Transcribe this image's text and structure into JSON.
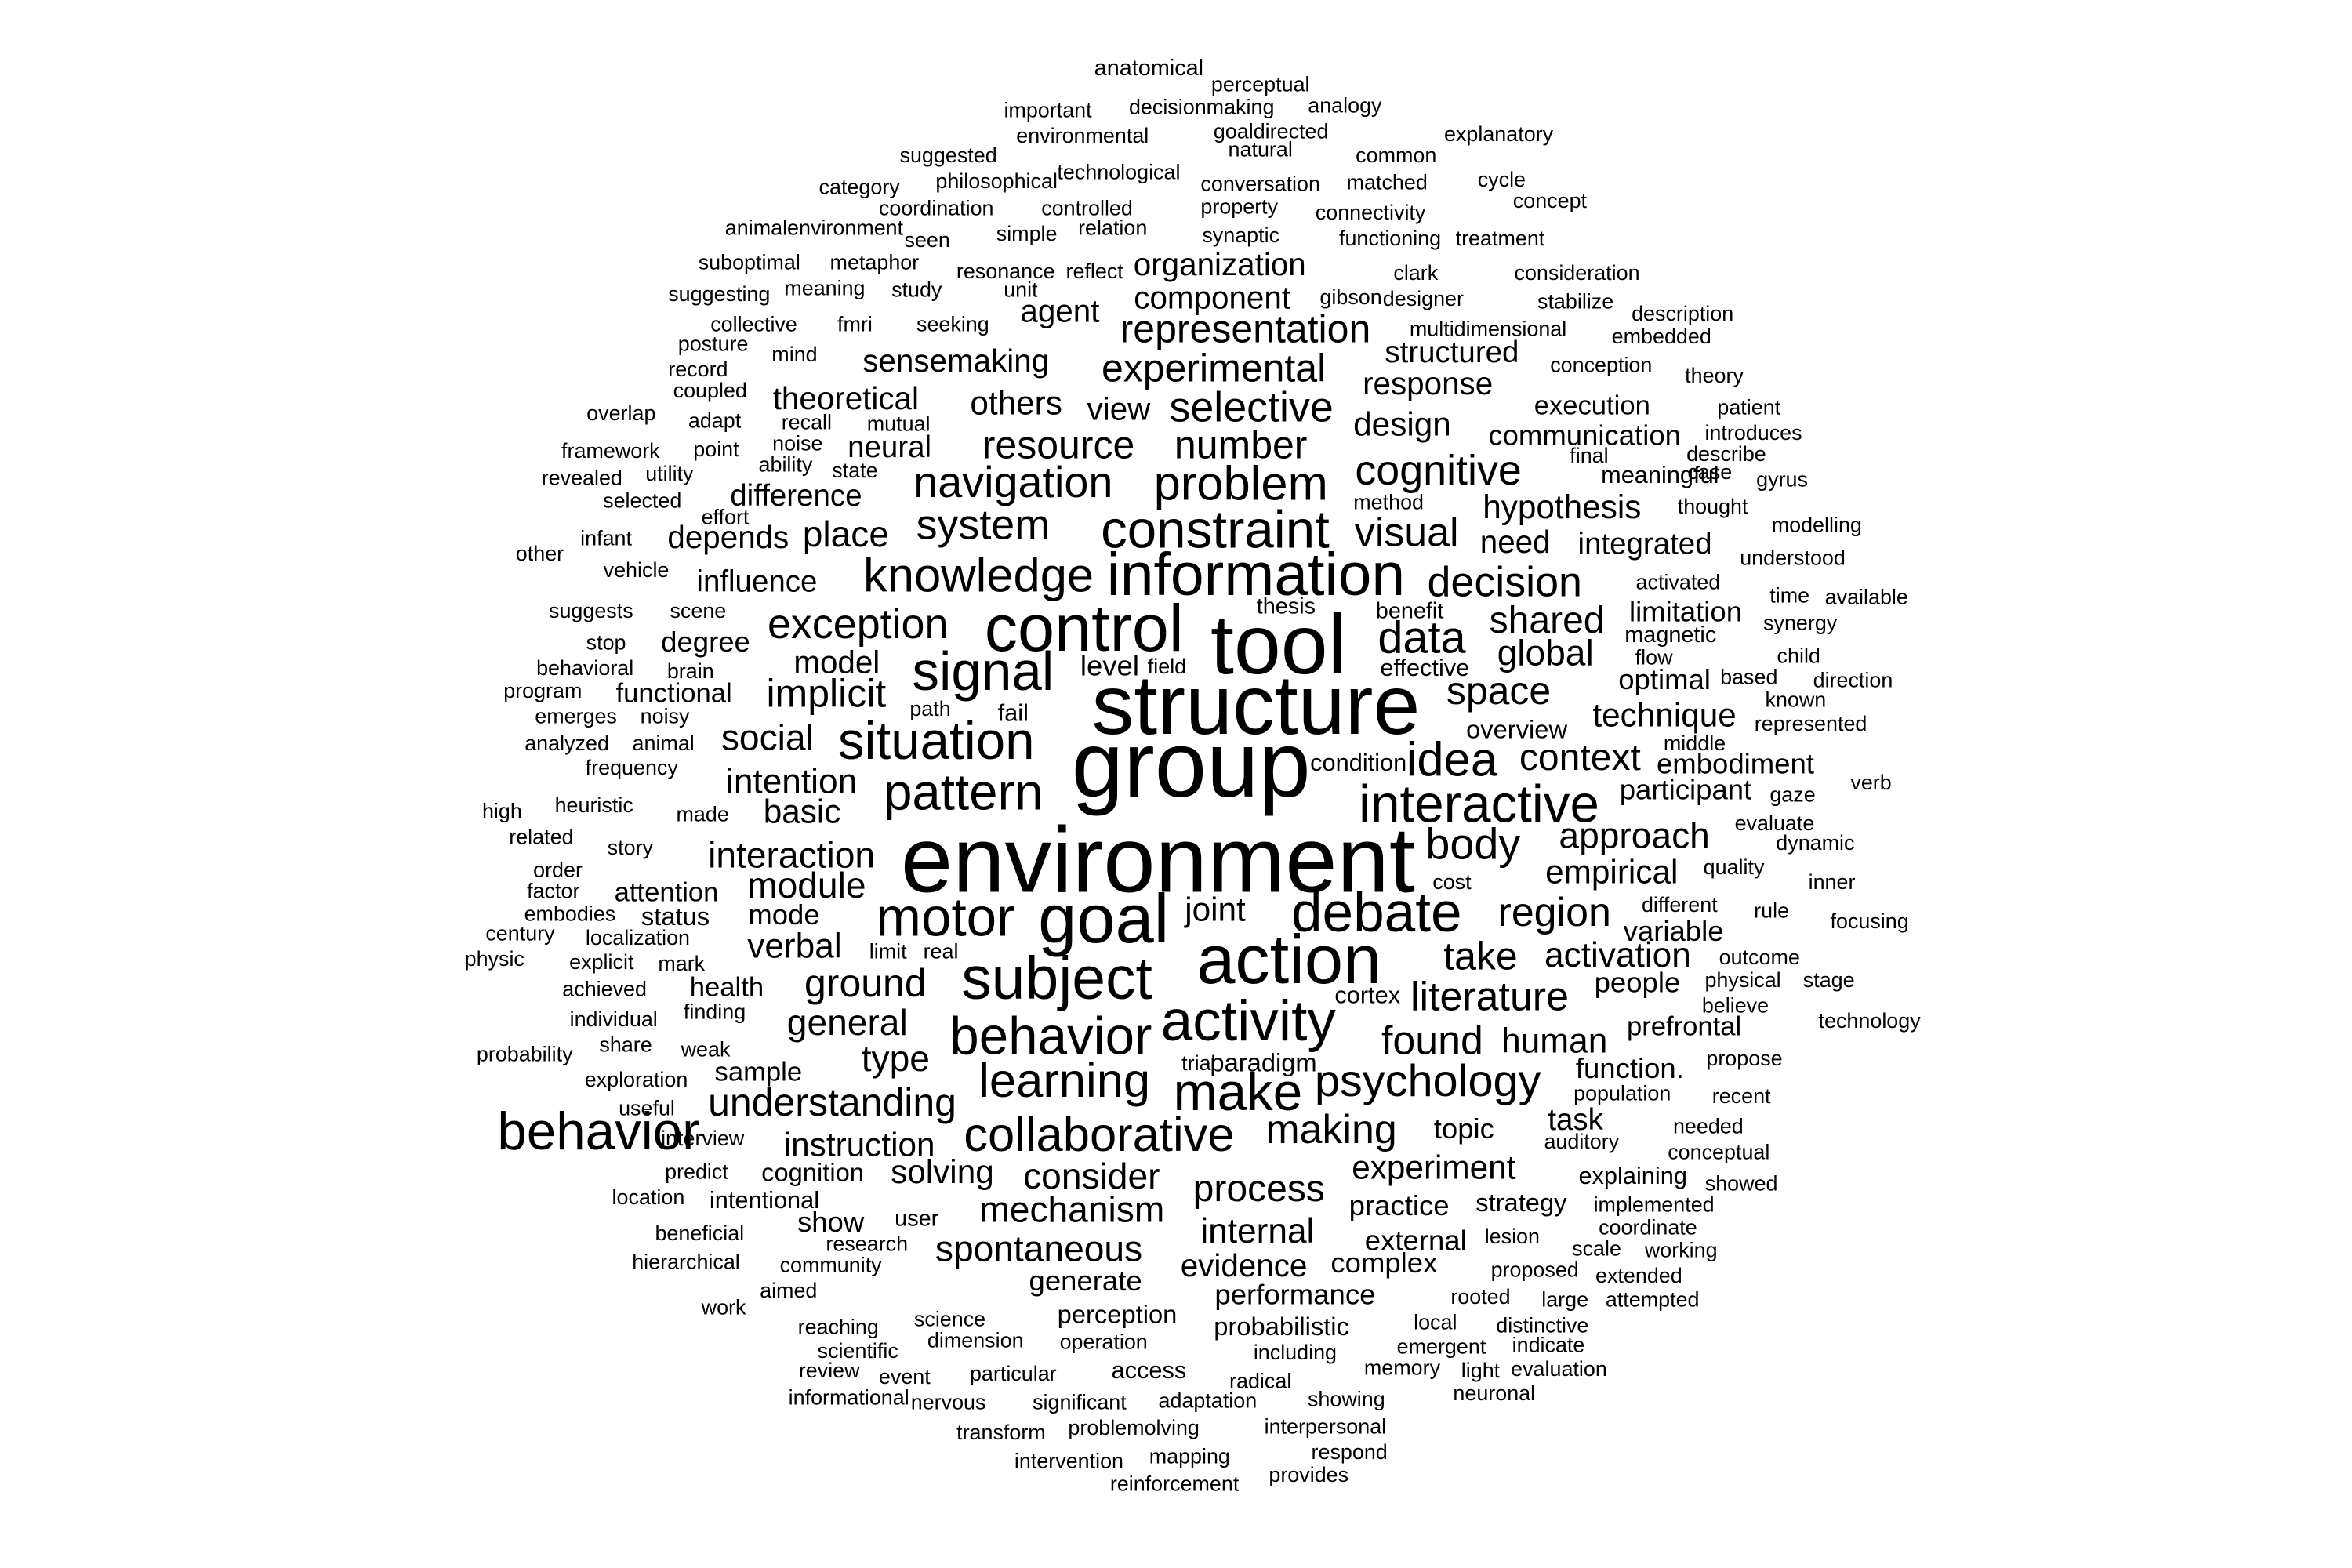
{
  "cloud": {
    "color": "#000000",
    "background": "#ffffff",
    "word_weights": [
      [
        "group",
        62
      ],
      [
        "environment",
        62
      ],
      [
        "structure",
        56
      ],
      [
        "tool",
        56
      ],
      [
        "action",
        46
      ],
      [
        "goal",
        46
      ],
      [
        "control",
        44
      ],
      [
        "information",
        40
      ],
      [
        "subject",
        40
      ],
      [
        "activity",
        38
      ],
      [
        "debate",
        37
      ],
      [
        "motor",
        36
      ],
      [
        "signal",
        36
      ],
      [
        "constraint",
        35
      ],
      [
        "situation",
        35
      ],
      [
        "behavior",
        35
      ],
      [
        "make",
        35
      ],
      [
        "interactive",
        35
      ],
      [
        "knowledge",
        32
      ],
      [
        "problem",
        32
      ],
      [
        "pattern",
        34
      ],
      [
        "idea",
        32
      ],
      [
        "data",
        30
      ],
      [
        "learning",
        32
      ],
      [
        "psychology",
        30
      ],
      [
        "collaborative",
        32
      ],
      [
        "navigation",
        29
      ],
      [
        "body",
        29
      ],
      [
        "system",
        28
      ],
      [
        "exception",
        28
      ],
      [
        "selective",
        28
      ],
      [
        "decision",
        28
      ],
      [
        "cognitive",
        28
      ],
      [
        "literature",
        27
      ],
      [
        "making",
        27
      ],
      [
        "visual",
        27
      ],
      [
        "found",
        27
      ],
      [
        "number",
        26
      ],
      [
        "resource",
        26
      ],
      [
        "space",
        26
      ],
      [
        "region",
        27
      ],
      [
        "take",
        26
      ],
      [
        "experimental",
        26
      ],
      [
        "representation",
        26
      ],
      [
        "understanding",
        26
      ],
      [
        "implicit",
        26
      ],
      [
        "ground",
        26
      ],
      [
        "process",
        25
      ],
      [
        "context",
        25
      ],
      [
        "shared",
        25
      ],
      [
        "mechanism",
        24
      ],
      [
        "spontaneous",
        24
      ],
      [
        "consider",
        24
      ],
      [
        "interaction",
        24
      ],
      [
        "module",
        24
      ],
      [
        "global",
        24
      ],
      [
        "general",
        24
      ],
      [
        "approach",
        24
      ],
      [
        "type",
        24
      ],
      [
        "place",
        24
      ],
      [
        "social",
        24
      ],
      [
        "intention",
        23
      ],
      [
        "activation",
        23
      ],
      [
        "verbal",
        23
      ],
      [
        "internal",
        23
      ],
      [
        "technique",
        22
      ],
      [
        "hypothesis",
        22
      ],
      [
        "human",
        23
      ],
      [
        "joint",
        22
      ],
      [
        "solving",
        22
      ],
      [
        "instruction",
        22
      ],
      [
        "experiment",
        22
      ],
      [
        "evidence",
        21
      ],
      [
        "empirical",
        22
      ],
      [
        "response",
        21
      ],
      [
        "design",
        22
      ],
      [
        "basic",
        22
      ],
      [
        "model",
        21
      ],
      [
        "view",
        21
      ],
      [
        "others",
        22
      ],
      [
        "theoretical",
        21
      ],
      [
        "sensemaking",
        21
      ],
      [
        "organization",
        21
      ],
      [
        "agent",
        21
      ],
      [
        "component",
        21
      ],
      [
        "depends",
        21
      ],
      [
        "difference",
        20
      ],
      [
        "influence",
        20
      ],
      [
        "communication",
        19
      ],
      [
        "structured",
        20
      ],
      [
        "need",
        21
      ],
      [
        "integrated",
        20
      ],
      [
        "limitation",
        19
      ],
      [
        "embodiment",
        19
      ],
      [
        "participant",
        19
      ],
      [
        "function.",
        19
      ],
      [
        "practice",
        19
      ],
      [
        "performance",
        19
      ],
      [
        "topic",
        19
      ],
      [
        "generate",
        19
      ],
      [
        "external",
        19
      ],
      [
        "complex",
        19
      ],
      [
        "mode",
        19
      ],
      [
        "neural",
        20
      ],
      [
        "variable",
        19
      ],
      [
        "people",
        19
      ],
      [
        "prefrontal",
        18
      ],
      [
        "level",
        19
      ],
      [
        "sample",
        18
      ],
      [
        "strategy",
        17
      ],
      [
        "health",
        18
      ],
      [
        "intentional",
        16
      ],
      [
        "cognition",
        17
      ],
      [
        "attention",
        18
      ],
      [
        "degree",
        19
      ],
      [
        "functional",
        18
      ],
      [
        "status",
        17
      ],
      [
        "perception",
        17
      ],
      [
        "probabilistic",
        17
      ],
      [
        "optimal",
        19
      ],
      [
        "meaningful",
        16
      ],
      [
        "execution",
        18
      ],
      [
        "paradigm",
        17
      ],
      [
        "task",
        20
      ],
      [
        "cortex",
        16
      ],
      [
        "user",
        15
      ],
      [
        "show",
        19
      ],
      [
        "access",
        16
      ],
      [
        "explaining",
        16
      ],
      [
        "magnetic",
        15
      ],
      [
        "overview",
        17
      ],
      [
        "condition",
        16
      ],
      [
        "fail",
        16
      ],
      [
        "effective",
        16
      ],
      [
        "benefit",
        15
      ],
      [
        "thesis",
        15
      ],
      [
        "anatomical",
        15
      ]
    ],
    "words": [
      "group",
      "environment",
      "structure",
      "tool",
      "action",
      "goal",
      "control",
      "information",
      "subject",
      "activity",
      "debate",
      "motor",
      "signal",
      "constraint",
      "situation",
      "behavior",
      "make",
      "interactive",
      "knowledge",
      "problem",
      "pattern",
      "idea",
      "data",
      "learning",
      "psychology",
      "collaborative",
      "navigation",
      "body",
      "system",
      "exception",
      "selective",
      "decision",
      "cognitive",
      "literature",
      "making",
      "visual",
      "found",
      "number",
      "resource",
      "space",
      "region",
      "take",
      "experimental",
      "representation",
      "understanding",
      "implicit",
      "ground",
      "process",
      "context",
      "shared",
      "mechanism",
      "spontaneous",
      "consider",
      "interaction",
      "module",
      "global",
      "general",
      "approach",
      "type",
      "place",
      "social",
      "intention",
      "activation",
      "verbal",
      "internal",
      "technique",
      "hypothesis",
      "human",
      "joint",
      "solving",
      "instruction",
      "experiment",
      "evidence",
      "empirical",
      "response",
      "design",
      "basic",
      "model",
      "view",
      "others",
      "theoretical",
      "sensemaking",
      "organization",
      "agent",
      "component",
      "depends",
      "difference",
      "influence",
      "communication",
      "structured",
      "need",
      "integrated",
      "limitation",
      "embodiment",
      "participant",
      "function.",
      "practice",
      "performance",
      "topic",
      "generate",
      "external",
      "complex",
      "mode",
      "neural",
      "variable",
      "people",
      "prefrontal",
      "level",
      "sample",
      "strategy",
      "health",
      "intentional",
      "cognition",
      "attention",
      "degree",
      "functional",
      "status",
      "perception",
      "probabilistic",
      "optimal",
      "meaningful",
      "execution",
      "paradigm",
      "task",
      "cortex",
      "user",
      "show",
      "access",
      "explaining",
      "magnetic",
      "overview",
      "condition",
      "fail",
      "effective",
      "benefit",
      "thesis",
      "anatomical",
      "perceptual",
      "important",
      "decisionmaking",
      "analogy",
      "goaldirected",
      "environmental",
      "explanatory",
      "suggested",
      "technological",
      "natural",
      "common",
      "philosophical",
      "conversation",
      "matched",
      "category",
      "cycle",
      "controlled",
      "coordination",
      "property",
      "connectivity",
      "concept",
      "animalenvironment",
      "relation",
      "seen",
      "simple",
      "synaptic",
      "functioning",
      "treatment",
      "suboptimal",
      "metaphor",
      "resonance",
      "reflect",
      "unit",
      "clark",
      "consideration",
      "suggesting",
      "meaning",
      "study",
      "gibson",
      "designer",
      "stabilize",
      "collective",
      "fmri",
      "seeking",
      "multidimensional",
      "description",
      "posture",
      "mind",
      "embedded",
      "record",
      "conception",
      "theory",
      "coupled",
      "patient",
      "overlap",
      "adapt",
      "recall",
      "mutual",
      "noise",
      "framework",
      "point",
      "ability",
      "state",
      "introduces",
      "final",
      "describe",
      "revealed",
      "utility",
      "case",
      "gyrus",
      "selected",
      "method",
      "thought",
      "effort",
      "infant",
      "modelling",
      "other",
      "understood",
      "vehicle",
      "activated",
      "time",
      "available",
      "suggests",
      "scene",
      "synergy",
      "stop",
      "flow",
      "child",
      "behavioral",
      "brain",
      "field",
      "based",
      "direction",
      "program",
      "known",
      "emerges",
      "noisy",
      "path",
      "represented",
      "analyzed",
      "animal",
      "middle",
      "frequency",
      "verb",
      "gaze",
      "high",
      "heuristic",
      "evaluate",
      "made",
      "related",
      "story",
      "dynamic",
      "order",
      "cost",
      "quality",
      "factor",
      "inner",
      "embodies",
      "different",
      "focusing",
      "century",
      "rule",
      "localization",
      "physic",
      "explicit",
      "mark",
      "limit",
      "real",
      "outcome",
      "achieved",
      "physical",
      "stage",
      "believe",
      "individual",
      "finding",
      "technology",
      "probability",
      "share",
      "weak",
      "propose",
      "exploration",
      "trial",
      "recent",
      "useful",
      "population",
      "interview",
      "needed",
      "behavior",
      "auditory",
      "conceptual",
      "predict",
      "showed",
      "location",
      "implemented",
      "beneficial",
      "research",
      "coordinate",
      "lesion",
      "scale",
      "working",
      "hierarchical",
      "community",
      "proposed",
      "extended",
      "aimed",
      "rooted",
      "large",
      "attempted",
      "work",
      "science",
      "reaching",
      "dimension",
      "operation",
      "local",
      "distinctive",
      "emergent",
      "indicate",
      "scientific",
      "including",
      "review",
      "event",
      "particular",
      "memory",
      "light",
      "evaluation",
      "radical",
      "informational",
      "nervous",
      "significant",
      "adaptation",
      "showing",
      "neuronal",
      "transform",
      "problemolving",
      "interpersonal",
      "intervention",
      "mapping",
      "respond",
      "reinforcement",
      "provides"
    ]
  }
}
